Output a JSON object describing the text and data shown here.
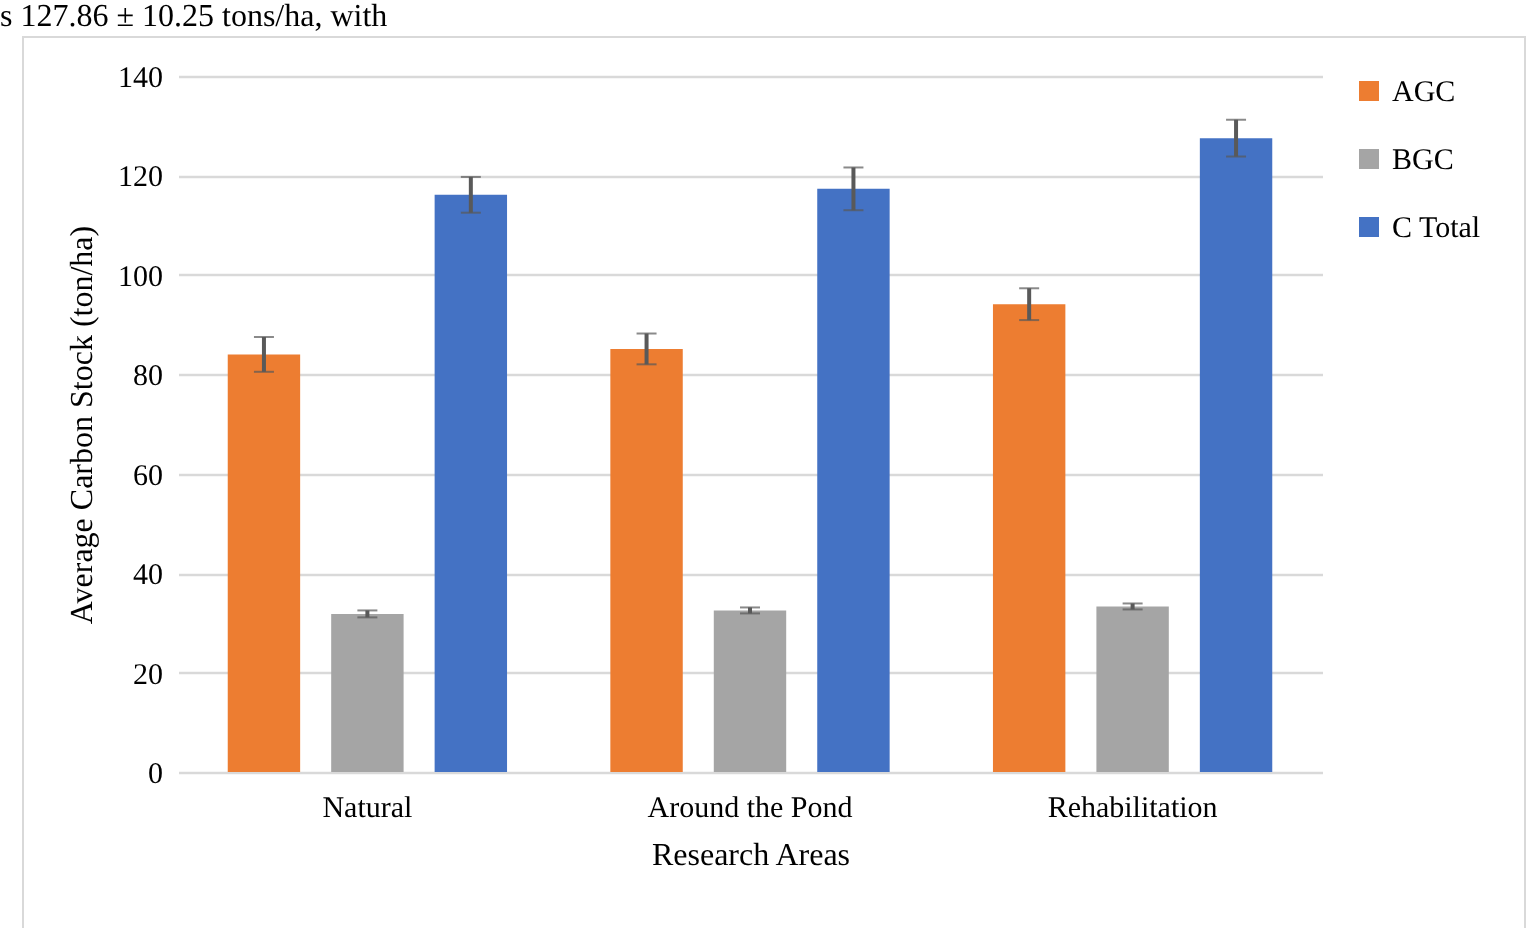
{
  "chart_data": {
    "type": "bar",
    "xlabel": "Research Areas",
    "ylabel": "Average Carbon Stock (ton/ha)",
    "annotations": [
      "s 127.86 ± 10.25 tons/ha, with"
    ],
    "categories": [
      "Natural",
      "Around the Pond",
      "Rehabilitation"
    ],
    "series": [
      {
        "name": "AGC",
        "color": "#ed7d31",
        "values": [
          84,
          85.1,
          94.1
        ],
        "errors": [
          3.5,
          3.1,
          3.2
        ]
      },
      {
        "name": "BGC",
        "color": "#a5a5a5",
        "values": [
          31.8,
          32.5,
          33.3
        ],
        "errors": [
          0.7,
          0.6,
          0.6
        ]
      },
      {
        "name": "C Total",
        "color": "#4472c4",
        "values": [
          116.1,
          117.3,
          127.5
        ],
        "errors": [
          3.6,
          4.3,
          3.7
        ]
      }
    ],
    "ylim": [
      0,
      140
    ],
    "yticks": [
      0,
      20,
      40,
      60,
      80,
      100,
      120,
      140
    ],
    "grid": "y",
    "legend": "right"
  }
}
